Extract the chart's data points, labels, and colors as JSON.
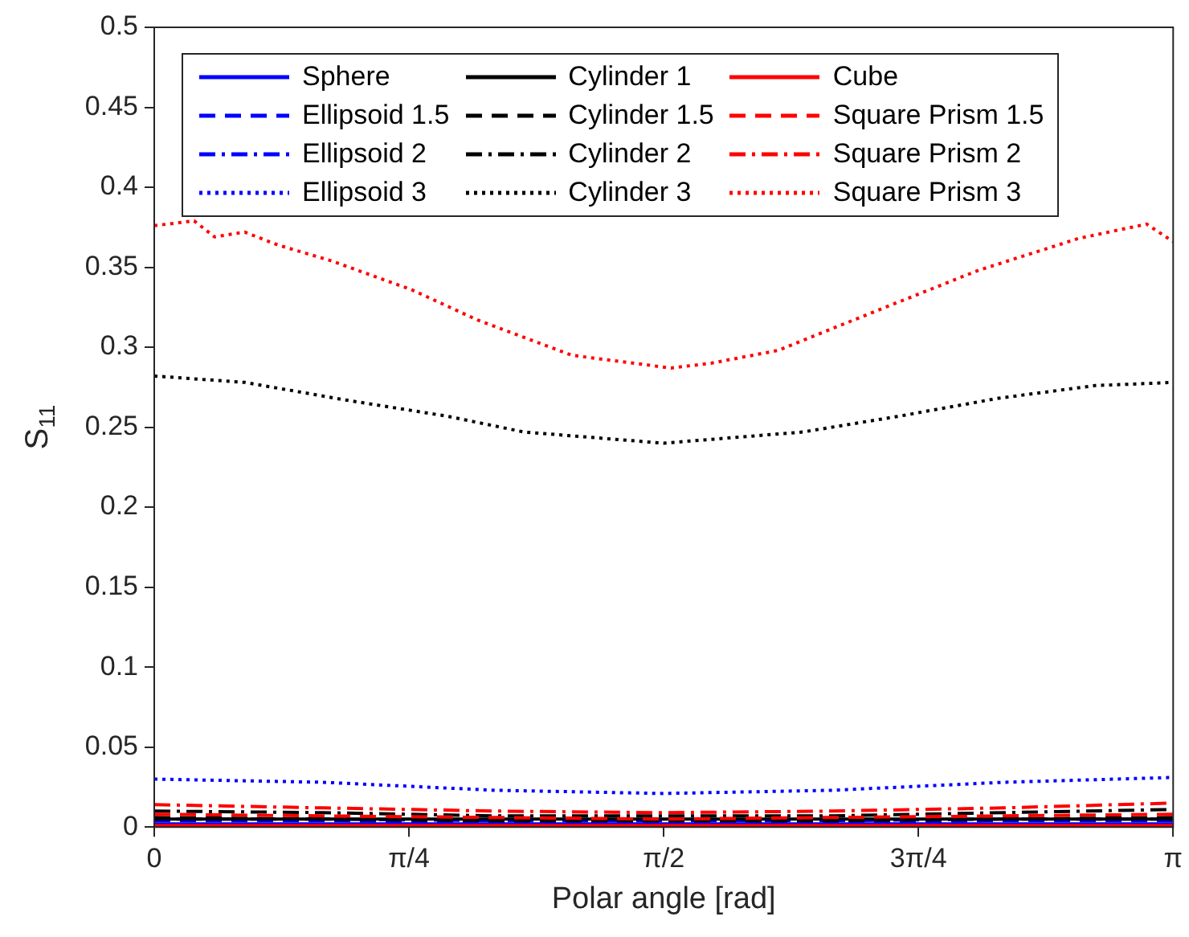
{
  "chart_data": {
    "type": "line",
    "xlabel": "Polar angle [rad]",
    "ylabel": "S$_{11}$",
    "xlim": [
      0,
      3.1416
    ],
    "xticks": [
      0,
      {
        "value": 0.7854,
        "label": "π/4"
      },
      {
        "value": 1.5708,
        "label": "π/2"
      },
      {
        "value": 2.3562,
        "label": "3π/4"
      },
      {
        "value": 3.1416,
        "label": "π"
      }
    ],
    "ylim": [
      0,
      0.5
    ],
    "yticks": [
      0,
      0.05,
      0.1,
      0.15,
      0.2,
      0.25,
      0.3,
      0.35,
      0.4,
      0.45,
      0.5
    ],
    "grid": false,
    "legend": "top left",
    "marker": "none",
    "x": [
      0,
      0.52,
      1.05,
      1.57,
      2.09,
      2.62,
      3.14
    ],
    "series": [
      {
        "name": "Sphere",
        "color": "#0000ff",
        "line_style": "solid",
        "values": [
          0.002,
          0.002,
          0.002,
          0.002,
          0.002,
          0.002,
          0.002
        ]
      },
      {
        "name": "Ellipsoid 1.5",
        "color": "#0000ff",
        "line_style": "dashed",
        "values": [
          0.004,
          0.004,
          0.003,
          0.003,
          0.003,
          0.004,
          0.004
        ]
      },
      {
        "name": "Ellipsoid 2",
        "color": "#0000ff",
        "line_style": "dashdot",
        "values": [
          0.005,
          0.005,
          0.004,
          0.004,
          0.004,
          0.005,
          0.005
        ]
      },
      {
        "name": "Ellipsoid 3",
        "color": "#0000ff",
        "line_style": "dotted",
        "values": [
          0.03,
          0.028,
          0.023,
          0.021,
          0.023,
          0.028,
          0.031
        ]
      },
      {
        "name": "Cylinder 1",
        "color": "#000000",
        "line_style": "solid",
        "values": [
          0.005,
          0.005,
          0.005,
          0.005,
          0.005,
          0.005,
          0.005
        ]
      },
      {
        "name": "Cylinder 1.5",
        "color": "#000000",
        "line_style": "dashed",
        "values": [
          0.006,
          0.005,
          0.004,
          0.004,
          0.004,
          0.005,
          0.006
        ]
      },
      {
        "name": "Cylinder 2",
        "color": "#000000",
        "line_style": "dashdot",
        "values": [
          0.01,
          0.009,
          0.007,
          0.007,
          0.007,
          0.009,
          0.011
        ]
      },
      {
        "name": "Cylinder 3",
        "color": "#000000",
        "line_style": "dotted",
        "x": [
          0,
          0.28,
          0.59,
          0.9,
          1.14,
          1.57,
          2.0,
          2.3,
          2.6,
          2.9,
          3.1416
        ],
        "values": [
          0.282,
          0.278,
          0.267,
          0.257,
          0.247,
          0.24,
          0.247,
          0.257,
          0.268,
          0.276,
          0.278
        ]
      },
      {
        "name": "Cube",
        "color": "#ff0000",
        "line_style": "solid",
        "values": [
          0.001,
          0.001,
          0.001,
          0.001,
          0.001,
          0.001,
          0.001
        ]
      },
      {
        "name": "Square Prism 1.5",
        "color": "#ff0000",
        "line_style": "dashed",
        "values": [
          0.008,
          0.007,
          0.006,
          0.005,
          0.006,
          0.007,
          0.008
        ]
      },
      {
        "name": "Square Prism 2",
        "color": "#ff0000",
        "line_style": "dashdot",
        "values": [
          0.014,
          0.012,
          0.01,
          0.009,
          0.01,
          0.012,
          0.015
        ]
      },
      {
        "name": "Square Prism 3",
        "color": "#ff0000",
        "line_style": "dotted",
        "x": [
          0,
          0.123,
          0.186,
          0.279,
          0.38,
          0.546,
          0.793,
          0.997,
          1.287,
          1.593,
          1.717,
          1.923,
          2.23,
          2.54,
          2.85,
          3.06,
          3.1416
        ],
        "values": [
          0.376,
          0.379,
          0.369,
          0.372,
          0.364,
          0.354,
          0.336,
          0.317,
          0.295,
          0.287,
          0.29,
          0.298,
          0.323,
          0.348,
          0.368,
          0.377,
          0.366
        ]
      }
    ]
  }
}
